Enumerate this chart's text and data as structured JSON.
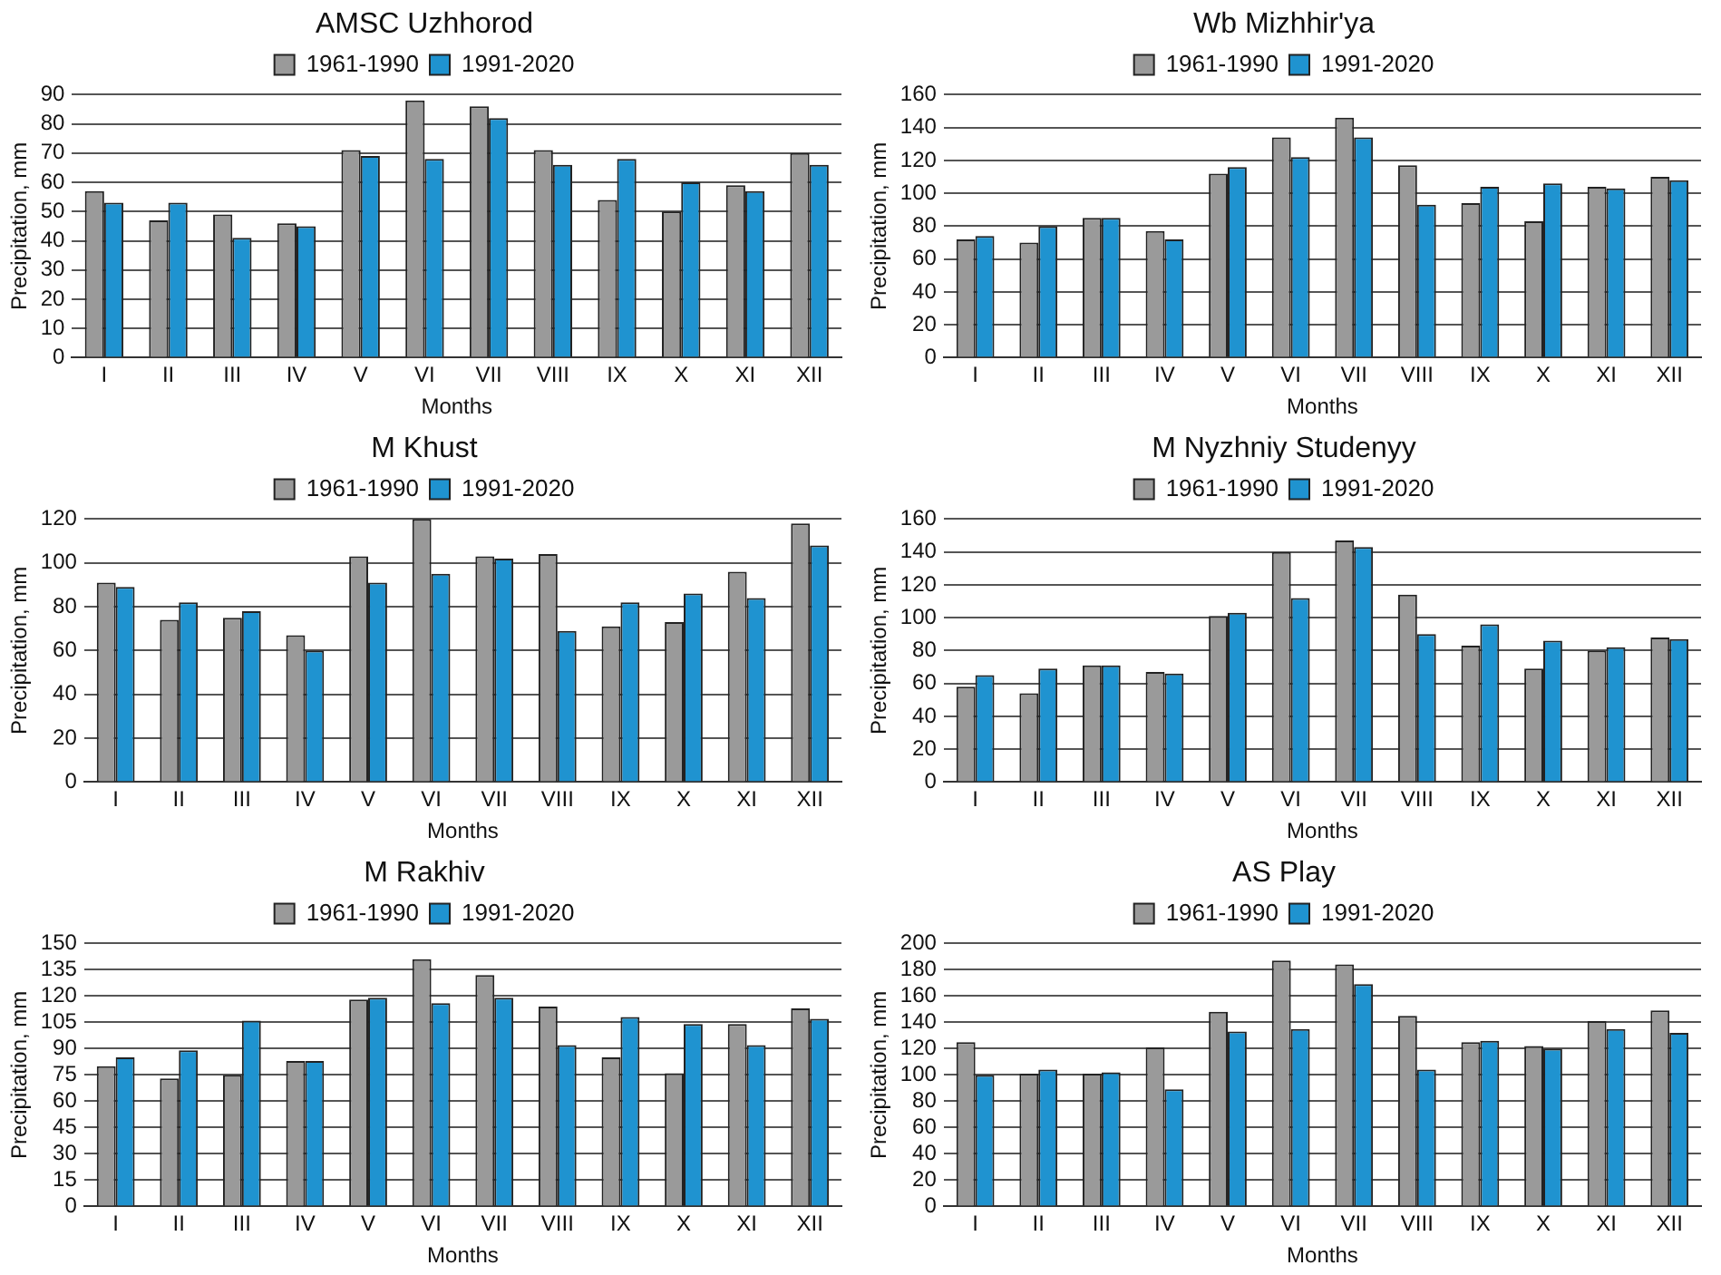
{
  "chart_data": [
    {
      "type": "bar",
      "title": "AMSC Uzhhorod",
      "xlabel": "Months",
      "ylabel": "Precipitation, mm",
      "categories": [
        "I",
        "II",
        "III",
        "IV",
        "V",
        "VI",
        "VII",
        "VIII",
        "IX",
        "X",
        "XI",
        "XII"
      ],
      "ylim": [
        0,
        90
      ],
      "yticks": [
        0,
        10,
        20,
        30,
        40,
        50,
        60,
        70,
        80,
        90
      ],
      "grid": "y",
      "legend": "top",
      "series": [
        {
          "name": "1961-1990",
          "color": "#9a9a9a",
          "values": [
            57,
            47,
            49,
            46,
            71,
            88,
            86,
            71,
            54,
            50,
            59,
            70
          ]
        },
        {
          "name": "1991-2020",
          "color": "#1f93d0",
          "values": [
            53,
            53,
            41,
            45,
            69,
            68,
            82,
            66,
            68,
            60,
            57,
            66
          ]
        }
      ]
    },
    {
      "type": "bar",
      "title": "Wb Mizhhir'ya",
      "xlabel": "Months",
      "ylabel": "Precipitation, mm",
      "categories": [
        "I",
        "II",
        "III",
        "IV",
        "V",
        "VI",
        "VII",
        "VIII",
        "IX",
        "X",
        "XI",
        "XII"
      ],
      "ylim": [
        0,
        160
      ],
      "yticks": [
        0,
        20,
        40,
        60,
        80,
        100,
        120,
        140,
        160
      ],
      "grid": "y",
      "legend": "top",
      "series": [
        {
          "name": "1961-1990",
          "color": "#9a9a9a",
          "values": [
            72,
            70,
            85,
            77,
            112,
            134,
            146,
            117,
            94,
            83,
            104,
            110
          ]
        },
        {
          "name": "1991-2020",
          "color": "#1f93d0",
          "values": [
            74,
            80,
            85,
            72,
            116,
            122,
            134,
            93,
            104,
            106,
            103,
            108
          ]
        }
      ]
    },
    {
      "type": "bar",
      "title": "M Khust",
      "xlabel": "Months",
      "ylabel": "Precipitation, mm",
      "categories": [
        "I",
        "II",
        "III",
        "IV",
        "V",
        "VI",
        "VII",
        "VIII",
        "IX",
        "X",
        "XI",
        "XII"
      ],
      "ylim": [
        0,
        120
      ],
      "yticks": [
        0,
        20,
        40,
        60,
        80,
        100,
        120
      ],
      "grid": "y",
      "legend": "top",
      "series": [
        {
          "name": "1961-1990",
          "color": "#9a9a9a",
          "values": [
            91,
            74,
            75,
            67,
            103,
            120,
            103,
            104,
            71,
            73,
            96,
            118
          ]
        },
        {
          "name": "1991-2020",
          "color": "#1f93d0",
          "values": [
            89,
            82,
            78,
            60,
            91,
            95,
            102,
            69,
            82,
            86,
            84,
            108
          ]
        }
      ]
    },
    {
      "type": "bar",
      "title": "M Nyzhniy Studenyy",
      "xlabel": "Months",
      "ylabel": "Precipitation, mm",
      "categories": [
        "I",
        "II",
        "III",
        "IV",
        "V",
        "VI",
        "VII",
        "VIII",
        "IX",
        "X",
        "XI",
        "XII"
      ],
      "ylim": [
        0,
        160
      ],
      "yticks": [
        0,
        20,
        40,
        60,
        80,
        100,
        120,
        140,
        160
      ],
      "grid": "y",
      "legend": "top",
      "series": [
        {
          "name": "1961-1990",
          "color": "#9a9a9a",
          "values": [
            58,
            54,
            71,
            67,
            101,
            140,
            147,
            114,
            83,
            69,
            80,
            88
          ]
        },
        {
          "name": "1991-2020",
          "color": "#1f93d0",
          "values": [
            65,
            69,
            71,
            66,
            103,
            112,
            143,
            90,
            96,
            86,
            82,
            87
          ]
        }
      ]
    },
    {
      "type": "bar",
      "title": "M Rakhiv",
      "xlabel": "Months",
      "ylabel": "Precipitation, mm",
      "categories": [
        "I",
        "II",
        "III",
        "IV",
        "V",
        "VI",
        "VII",
        "VIII",
        "IX",
        "X",
        "XI",
        "XII"
      ],
      "ylim": [
        0,
        150
      ],
      "yticks": [
        0,
        15,
        30,
        45,
        60,
        75,
        90,
        105,
        120,
        135,
        150
      ],
      "grid": "y",
      "legend": "top",
      "series": [
        {
          "name": "1961-1990",
          "color": "#9a9a9a",
          "values": [
            80,
            73,
            75,
            83,
            118,
            141,
            132,
            114,
            85,
            76,
            104,
            113
          ]
        },
        {
          "name": "1991-2020",
          "color": "#1f93d0",
          "values": [
            85,
            89,
            106,
            83,
            119,
            116,
            119,
            92,
            108,
            104,
            92,
            107
          ]
        }
      ]
    },
    {
      "type": "bar",
      "title": "AS Play",
      "xlabel": "Months",
      "ylabel": "Precipitation, mm",
      "categories": [
        "I",
        "II",
        "III",
        "IV",
        "V",
        "VI",
        "VII",
        "VIII",
        "IX",
        "X",
        "XI",
        "XII"
      ],
      "ylim": [
        0,
        200
      ],
      "yticks": [
        0,
        20,
        40,
        60,
        80,
        100,
        120,
        140,
        160,
        180,
        200
      ],
      "grid": "y",
      "legend": "top",
      "series": [
        {
          "name": "1961-1990",
          "color": "#9a9a9a",
          "values": [
            125,
            101,
            101,
            121,
            148,
            187,
            184,
            145,
            125,
            122,
            141,
            149
          ]
        },
        {
          "name": "1991-2020",
          "color": "#1f93d0",
          "values": [
            100,
            104,
            102,
            89,
            133,
            135,
            169,
            104,
            126,
            120,
            135,
            132
          ]
        }
      ]
    }
  ]
}
